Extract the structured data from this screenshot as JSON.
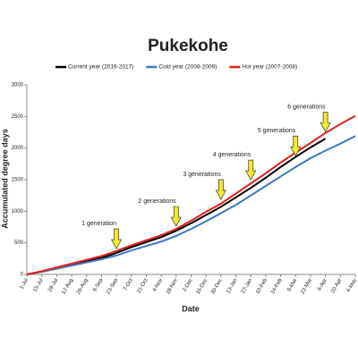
{
  "chart_data": {
    "type": "line",
    "title": "Pukekohe",
    "x_label": "Date",
    "y_label": "Accumulated degree days",
    "categories": [
      "1-Jul",
      "15-Jul",
      "29-Jul",
      "12-Aug",
      "26-Aug",
      "9-Sep",
      "23-Sep",
      "7-Oct",
      "21-Oct",
      "4-Nov",
      "18-Nov",
      "2-Dec",
      "16-Dec",
      "30-Dec",
      "13-Jan",
      "27-Jan",
      "10-Feb",
      "24-Feb",
      "9-Mar",
      "23-Mar",
      "6-Apr",
      "20-Apr",
      "4-May"
    ],
    "series": [
      {
        "name": "Current year (2016-2017)",
        "color": "#000000",
        "values": [
          0,
          45,
          100,
          150,
          210,
          260,
          340,
          430,
          510,
          590,
          690,
          810,
          940,
          1070,
          1220,
          1370,
          1530,
          1700,
          1860,
          2010,
          2150,
          null,
          null
        ]
      },
      {
        "name": "Cold year (2008-2009)",
        "color": "#3a78c0",
        "values": [
          0,
          40,
          90,
          140,
          190,
          240,
          300,
          380,
          450,
          520,
          610,
          720,
          840,
          970,
          1100,
          1250,
          1400,
          1550,
          1700,
          1840,
          1960,
          2070,
          2190
        ]
      },
      {
        "name": "Hot year (2007-2008)",
        "color": "#e0201b",
        "values": [
          0,
          50,
          110,
          170,
          230,
          290,
          370,
          460,
          540,
          620,
          720,
          850,
          990,
          1120,
          1280,
          1440,
          1600,
          1770,
          1930,
          2080,
          2240,
          2380,
          2510
        ]
      }
    ],
    "ylim": [
      0,
      3000
    ],
    "yticks": [
      0,
      500,
      1000,
      1500,
      2000,
      2500,
      3000
    ],
    "grid": false,
    "annotations": [
      {
        "label": "1 generation",
        "x": "23-Sep",
        "y": 380
      },
      {
        "label": "2 generations",
        "x": "18-Nov",
        "y": 735
      },
      {
        "label": "3 generations",
        "x": "30-Dec",
        "y": 1160
      },
      {
        "label": "4 generations",
        "x": "27-Jan",
        "y": 1470
      },
      {
        "label": "5 generations",
        "x": "9-Mar",
        "y": 1850
      },
      {
        "label": "6 generations",
        "x": "6-Apr",
        "y": 2230
      }
    ]
  }
}
